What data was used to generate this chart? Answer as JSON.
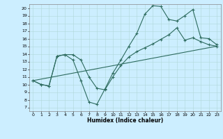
{
  "xlabel": "Humidex (Indice chaleur)",
  "bg_color": "#cceeff",
  "line_color": "#2d6b5e",
  "xlim": [
    -0.5,
    23.5
  ],
  "ylim": [
    6.5,
    20.5
  ],
  "yticks": [
    7,
    8,
    9,
    10,
    11,
    12,
    13,
    14,
    15,
    16,
    17,
    18,
    19,
    20
  ],
  "xticks": [
    0,
    1,
    2,
    3,
    4,
    5,
    6,
    7,
    8,
    9,
    10,
    11,
    12,
    13,
    14,
    15,
    16,
    17,
    18,
    19,
    20,
    21,
    22,
    23
  ],
  "series1_x": [
    0,
    1,
    2,
    3,
    4,
    5,
    6,
    7,
    8,
    9,
    10,
    11,
    12,
    13,
    14,
    15,
    16,
    17,
    18,
    19,
    20,
    21,
    22,
    23
  ],
  "series1_y": [
    10.5,
    10.0,
    9.8,
    13.7,
    13.9,
    13.2,
    10.5,
    7.7,
    7.4,
    9.4,
    11.5,
    13.2,
    15.0,
    16.7,
    19.2,
    20.3,
    20.2,
    18.5,
    18.3,
    19.0,
    19.8,
    16.1,
    16.0,
    15.2
  ],
  "series2_x": [
    0,
    1,
    2,
    3,
    4,
    5,
    6,
    7,
    8,
    9,
    10,
    11,
    12,
    13,
    14,
    15,
    16,
    17,
    18,
    19,
    20,
    21,
    22,
    23
  ],
  "series2_y": [
    10.5,
    10.0,
    9.8,
    13.7,
    13.9,
    13.9,
    13.2,
    11.0,
    9.5,
    9.3,
    11.0,
    12.5,
    13.6,
    14.3,
    14.8,
    15.3,
    15.9,
    16.5,
    17.4,
    15.8,
    16.1,
    15.6,
    15.2,
    15.0
  ],
  "series3_x": [
    0,
    23
  ],
  "series3_y": [
    10.5,
    15.0
  ]
}
